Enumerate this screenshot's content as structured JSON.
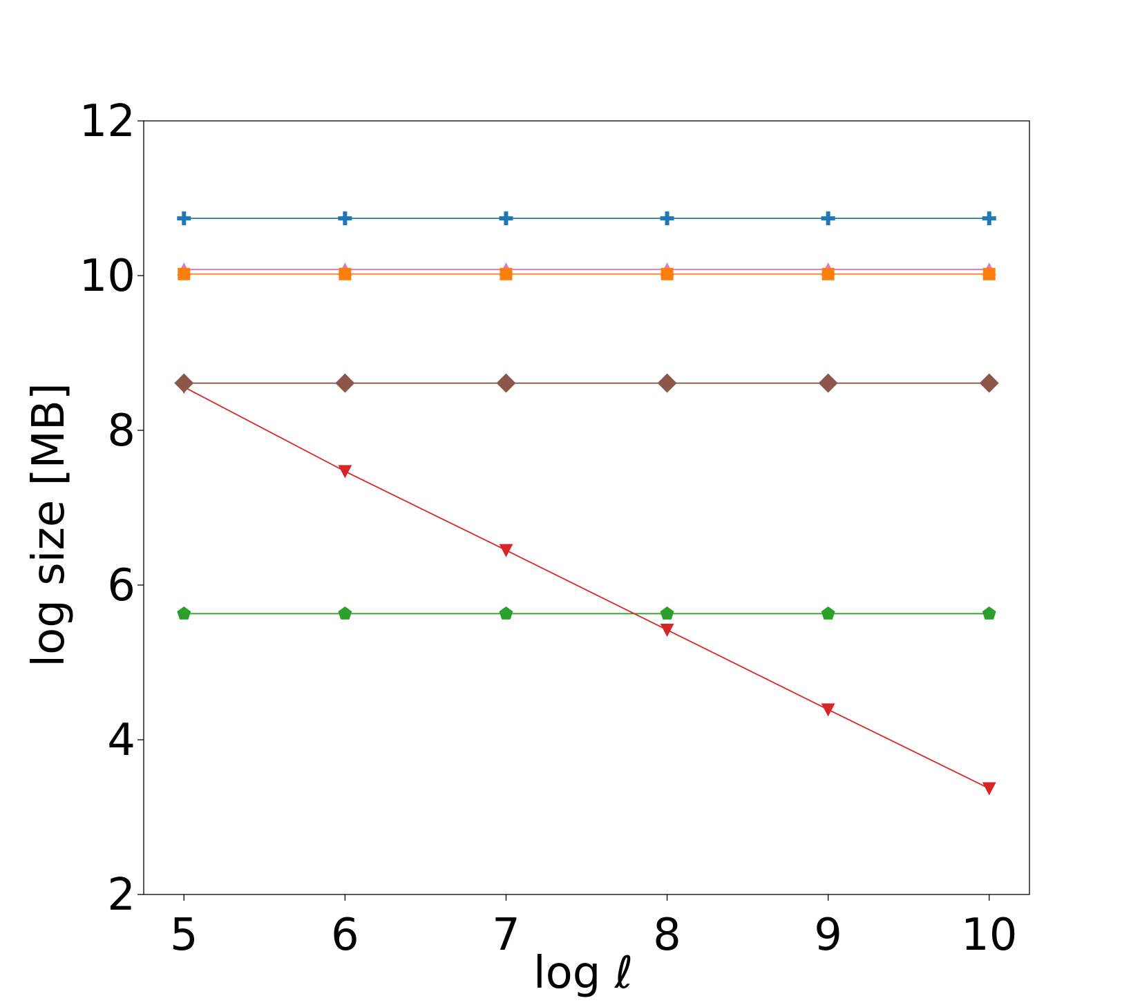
{
  "chart_data": {
    "type": "line",
    "title": "",
    "xlabel": "log ℓ",
    "ylabel": "log size [MB]",
    "xlim": [
      4.75,
      10.25
    ],
    "ylim": [
      2,
      12
    ],
    "xticks": [
      5,
      6,
      7,
      8,
      9,
      10
    ],
    "yticks": [
      2,
      4,
      6,
      8,
      10,
      12
    ],
    "x": [
      5,
      6,
      7,
      8,
      9,
      10
    ],
    "grid": false,
    "legend": "none",
    "series": [
      {
        "color": "#1f77b4",
        "marker": "plus",
        "values": [
          10.74,
          10.74,
          10.74,
          10.74,
          10.74,
          10.74
        ]
      },
      {
        "color": "#ff7f0e",
        "marker": "square",
        "values": [
          10.02,
          10.02,
          10.02,
          10.02,
          10.02,
          10.02
        ]
      },
      {
        "color": "#2ca02c",
        "marker": "pentagon",
        "values": [
          5.63,
          5.63,
          5.63,
          5.63,
          5.63,
          5.63
        ]
      },
      {
        "color": "#d62728",
        "marker": "triangle-down",
        "values": [
          8.56,
          7.47,
          6.45,
          5.42,
          4.39,
          3.37
        ]
      },
      {
        "color": "#8c564b",
        "marker": "diamond",
        "values": [
          8.61,
          8.61,
          8.61,
          8.61,
          8.61,
          8.61
        ]
      },
      {
        "color": "#e377c2",
        "marker": "triangle-up",
        "values": [
          10.08,
          10.08,
          10.08,
          10.08,
          10.08,
          10.08
        ]
      }
    ]
  }
}
